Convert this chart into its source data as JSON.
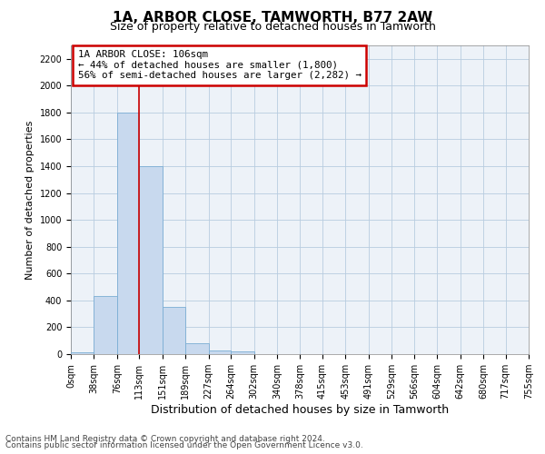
{
  "title": "1A, ARBOR CLOSE, TAMWORTH, B77 2AW",
  "subtitle": "Size of property relative to detached houses in Tamworth",
  "xlabel": "Distribution of detached houses by size in Tamworth",
  "ylabel": "Number of detached properties",
  "footer_line1": "Contains HM Land Registry data © Crown copyright and database right 2024.",
  "footer_line2": "Contains public sector information licensed under the Open Government Licence v3.0.",
  "bar_color": "#c8d9ee",
  "bar_edge_color": "#7aadd4",
  "grid_color": "#b8cce0",
  "annotation_box_color": "#cc0000",
  "annotation_text_line1": "1A ARBOR CLOSE: 106sqm",
  "annotation_text_line2": "← 44% of detached houses are smaller (1,800)",
  "annotation_text_line3": "56% of semi-detached houses are larger (2,282) →",
  "vline_x": 113,
  "vline_color": "#cc0000",
  "bin_edges": [
    0,
    38,
    76,
    113,
    151,
    189,
    227,
    264,
    302,
    340,
    378,
    415,
    453,
    491,
    529,
    566,
    604,
    642,
    680,
    717,
    755
  ],
  "bin_values": [
    15,
    430,
    1800,
    1400,
    355,
    78,
    25,
    20,
    0,
    0,
    0,
    0,
    0,
    0,
    0,
    0,
    0,
    0,
    0,
    0
  ],
  "ylim": [
    0,
    2300
  ],
  "yticks": [
    0,
    200,
    400,
    600,
    800,
    1000,
    1200,
    1400,
    1600,
    1800,
    2000,
    2200
  ],
  "background_color": "#edf2f8",
  "title_fontsize": 11,
  "subtitle_fontsize": 9,
  "xlabel_fontsize": 9,
  "ylabel_fontsize": 8,
  "tick_fontsize": 7,
  "footer_fontsize": 6.5
}
